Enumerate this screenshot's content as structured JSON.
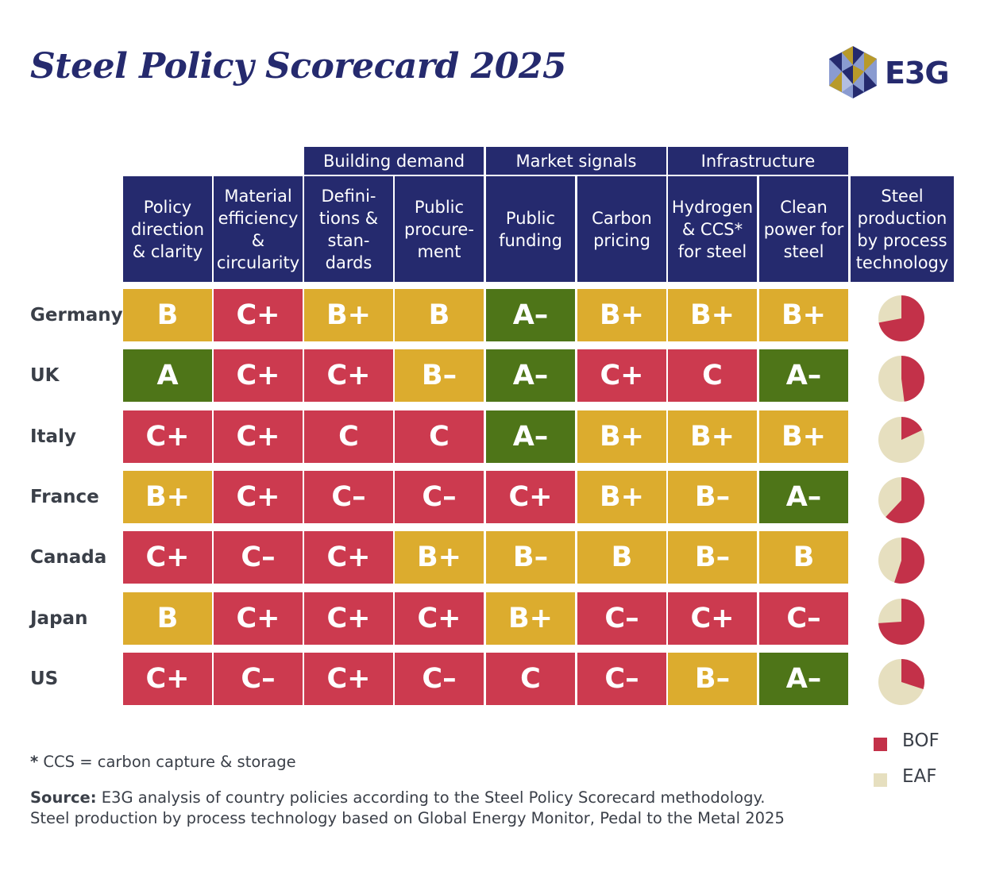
{
  "title": "Steel Policy Scorecard 2025",
  "logo_text": "E3G",
  "colors": {
    "navy": "#252a6e",
    "grade_a": "#4e7518",
    "grade_b": "#dcac2e",
    "grade_c": "#cc3a4f",
    "bof": "#c33149",
    "eaf": "#e6dfbf"
  },
  "groups": [
    {
      "label": "Building demand",
      "span": [
        2,
        3
      ]
    },
    {
      "label": "Market signals",
      "span": [
        4,
        5
      ]
    },
    {
      "label": "Infrastructure",
      "span": [
        6,
        7
      ]
    }
  ],
  "columns": [
    {
      "lines": [
        "Policy",
        "direction",
        "& clarity"
      ]
    },
    {
      "lines": [
        "Material",
        "efficiency",
        "&",
        "circularity"
      ]
    },
    {
      "lines": [
        "Defini-",
        "tions &",
        "stan-",
        "dards"
      ]
    },
    {
      "lines": [
        "Public",
        "procure-",
        "ment"
      ]
    },
    {
      "lines": [
        "Public",
        "funding"
      ]
    },
    {
      "lines": [
        "Carbon",
        "pricing"
      ]
    },
    {
      "lines": [
        "Hydrogen",
        "& CCS*",
        "for steel"
      ]
    },
    {
      "lines": [
        "Clean",
        "power for",
        "steel"
      ]
    }
  ],
  "production_header": {
    "lines": [
      "Steel",
      "production",
      "by process",
      "technology"
    ]
  },
  "chart_data": {
    "type": "table",
    "title": "Steel Policy Scorecard 2025",
    "countries": [
      "Germany",
      "UK",
      "Italy",
      "France",
      "Canada",
      "Japan",
      "US"
    ],
    "grades": [
      [
        "B",
        "C+",
        "B+",
        "B",
        "A–",
        "B+",
        "B+",
        "B+"
      ],
      [
        "A",
        "C+",
        "C+",
        "B–",
        "A–",
        "C+",
        "C",
        "A–"
      ],
      [
        "C+",
        "C+",
        "C",
        "C",
        "A–",
        "B+",
        "B+",
        "B+"
      ],
      [
        "B+",
        "C+",
        "C–",
        "C–",
        "C+",
        "B+",
        "B–",
        "A–"
      ],
      [
        "C+",
        "C–",
        "C+",
        "B+",
        "B–",
        "B",
        "B–",
        "B"
      ],
      [
        "B",
        "C+",
        "C+",
        "C+",
        "B+",
        "C–",
        "C+",
        "C–"
      ],
      [
        "C+",
        "C–",
        "C+",
        "C–",
        "C",
        "C–",
        "B–",
        "A–"
      ]
    ],
    "production_share_bof": [
      0.72,
      0.48,
      0.18,
      0.62,
      0.55,
      0.74,
      0.3
    ],
    "legend": [
      {
        "label": "BOF",
        "color": "#c33149"
      },
      {
        "label": "EAF",
        "color": "#e6dfbf"
      }
    ]
  },
  "footnote": {
    "marker": "*",
    "text": " CCS = carbon capture & storage"
  },
  "source": {
    "label": "Source:",
    "line1": " E3G analysis of country policies according to the Steel Policy Scorecard methodology.",
    "line2": "Steel production by process technology based on Global Energy Monitor, Pedal to the Metal 2025"
  }
}
